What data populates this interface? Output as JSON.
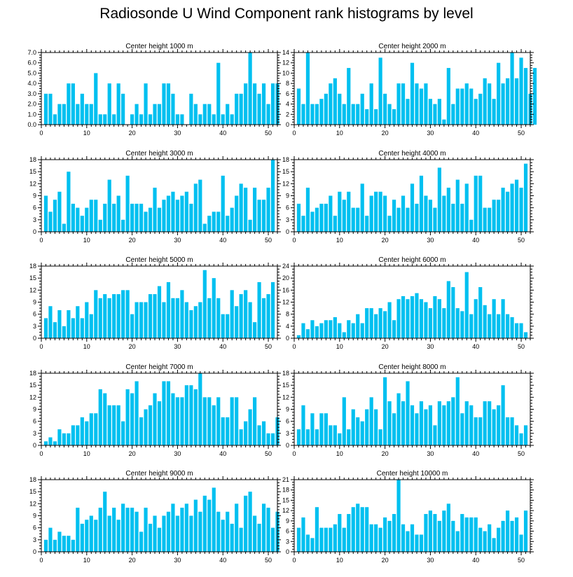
{
  "title": "Radiosonde U Wind Component rank histograms by level",
  "colors": {
    "bar": "#00c0f0",
    "axis": "#000000",
    "background": "#ffffff"
  },
  "chart_data": [
    {
      "type": "bar",
      "title": "Center height 1000 m",
      "xlim": [
        0,
        52
      ],
      "ylim": [
        0,
        7
      ],
      "xticks": [
        0,
        10,
        20,
        30,
        40,
        50
      ],
      "yticks": [
        0,
        1,
        2,
        3,
        4,
        5,
        6,
        7
      ],
      "ytick_labels": [
        "0.0",
        "1.0",
        "2.0",
        "3.0",
        "4.0",
        "5.0",
        "6.0",
        "7.0"
      ],
      "values": [
        3,
        3,
        1,
        2,
        2,
        4,
        4,
        2,
        3,
        2,
        2,
        5,
        1,
        1,
        4,
        1,
        4,
        3,
        0,
        1,
        2,
        1,
        4,
        1,
        2,
        2,
        4,
        4,
        3,
        1,
        1,
        0,
        3,
        2,
        1,
        2,
        2,
        1,
        6,
        1,
        2,
        1,
        3,
        3,
        4,
        7,
        4,
        3,
        4,
        2,
        4,
        4
      ]
    },
    {
      "type": "bar",
      "title": "Center height 2000 m",
      "xlim": [
        0,
        52
      ],
      "ylim": [
        0,
        14
      ],
      "xticks": [
        0,
        10,
        20,
        30,
        40,
        50
      ],
      "yticks": [
        0,
        2,
        4,
        6,
        8,
        10,
        12,
        14
      ],
      "ytick_labels": [
        "0",
        "2",
        "4",
        "6",
        "8",
        "10",
        "12",
        "14"
      ],
      "values": [
        7,
        4,
        14,
        4,
        4,
        5,
        6,
        8,
        9,
        6,
        4,
        11,
        4,
        4,
        6,
        3,
        8,
        3,
        13,
        6,
        4,
        3,
        8,
        8,
        5,
        12,
        8,
        7,
        8,
        5,
        4,
        5,
        1,
        11,
        4,
        7,
        7,
        8,
        7,
        5,
        6,
        9,
        8,
        5,
        12,
        8,
        9,
        14,
        9,
        13,
        11,
        6,
        11
      ]
    },
    {
      "type": "bar",
      "title": "Center height 3000 m",
      "xlim": [
        0,
        52
      ],
      "ylim": [
        0,
        18
      ],
      "xticks": [
        0,
        10,
        20,
        30,
        40,
        50
      ],
      "yticks": [
        0,
        3,
        6,
        9,
        12,
        15,
        18
      ],
      "ytick_labels": [
        "0",
        "3",
        "6",
        "9",
        "12",
        "15",
        "18"
      ],
      "values": [
        9,
        5,
        8,
        10,
        2,
        15,
        7,
        6,
        4,
        6,
        8,
        8,
        3,
        7,
        13,
        7,
        9,
        3,
        14,
        7,
        7,
        7,
        5,
        6,
        11,
        6,
        8,
        9,
        10,
        8,
        9,
        10,
        7,
        12,
        13,
        2,
        4,
        5,
        5,
        14,
        4,
        6,
        9,
        12,
        11,
        3,
        11,
        8,
        8,
        11,
        18
      ]
    },
    {
      "type": "bar",
      "title": "Center height 4000 m",
      "xlim": [
        0,
        52
      ],
      "ylim": [
        0,
        18
      ],
      "xticks": [
        0,
        10,
        20,
        30,
        40,
        50
      ],
      "yticks": [
        0,
        3,
        6,
        9,
        12,
        15,
        18
      ],
      "ytick_labels": [
        "0",
        "3",
        "6",
        "9",
        "12",
        "15",
        "18"
      ],
      "values": [
        7,
        4,
        11,
        5,
        6,
        7,
        7,
        9,
        4,
        10,
        8,
        10,
        6,
        6,
        12,
        4,
        9,
        10,
        10,
        9,
        4,
        8,
        6,
        9,
        6,
        12,
        7,
        14,
        9,
        8,
        6,
        16,
        9,
        11,
        7,
        13,
        7,
        12,
        3,
        14,
        14,
        6,
        6,
        8,
        8,
        11,
        10,
        12,
        13,
        11,
        17
      ]
    },
    {
      "type": "bar",
      "title": "Center height 5000 m",
      "xlim": [
        0,
        52
      ],
      "ylim": [
        0,
        18
      ],
      "xticks": [
        0,
        10,
        20,
        30,
        40,
        50
      ],
      "yticks": [
        0,
        3,
        6,
        9,
        12,
        15,
        18
      ],
      "ytick_labels": [
        "0",
        "3",
        "6",
        "9",
        "12",
        "15",
        "18"
      ],
      "values": [
        5,
        8,
        4,
        7,
        3,
        7,
        5,
        8,
        5,
        9,
        6,
        12,
        10,
        11,
        10,
        11,
        11,
        12,
        12,
        6,
        9,
        9,
        9,
        11,
        11,
        13,
        9,
        14,
        10,
        10,
        12,
        9,
        7,
        8,
        9,
        17,
        10,
        15,
        10,
        6,
        6,
        12,
        8,
        11,
        12,
        9,
        4,
        14,
        10,
        11,
        14
      ]
    },
    {
      "type": "bar",
      "title": "Center height 6000 m",
      "xlim": [
        0,
        52
      ],
      "ylim": [
        0,
        24
      ],
      "xticks": [
        0,
        10,
        20,
        30,
        40,
        50
      ],
      "yticks": [
        0,
        4,
        8,
        12,
        16,
        20,
        24
      ],
      "ytick_labels": [
        "0",
        "4",
        "8",
        "12",
        "16",
        "20",
        "24"
      ],
      "values": [
        1,
        5,
        3,
        6,
        4,
        5,
        6,
        6,
        7,
        5,
        2,
        6,
        5,
        8,
        5,
        10,
        10,
        8,
        10,
        9,
        12,
        6,
        13,
        14,
        13,
        14,
        15,
        13,
        12,
        10,
        14,
        13,
        10,
        19,
        17,
        10,
        9,
        22,
        8,
        13,
        17,
        11,
        8,
        13,
        8,
        13,
        8,
        7,
        5,
        5,
        2
      ]
    },
    {
      "type": "bar",
      "title": "Center height 7000 m",
      "xlim": [
        0,
        52
      ],
      "ylim": [
        0,
        18
      ],
      "xticks": [
        0,
        10,
        20,
        30,
        40,
        50
      ],
      "yticks": [
        0,
        3,
        6,
        9,
        12,
        15,
        18
      ],
      "ytick_labels": [
        "0",
        "3",
        "6",
        "9",
        "12",
        "15",
        "18"
      ],
      "values": [
        1,
        2,
        1,
        4,
        3,
        3,
        5,
        5,
        7,
        6,
        8,
        8,
        14,
        13,
        10,
        10,
        10,
        6,
        14,
        13,
        16,
        7,
        9,
        10,
        13,
        11,
        16,
        16,
        13,
        12,
        12,
        15,
        15,
        14,
        18,
        12,
        12,
        10,
        12,
        7,
        7,
        12,
        12,
        4,
        6,
        9,
        12,
        5,
        6,
        3,
        3,
        7
      ]
    },
    {
      "type": "bar",
      "title": "Center height 8000 m",
      "xlim": [
        0,
        52
      ],
      "ylim": [
        0,
        18
      ],
      "xticks": [
        0,
        10,
        20,
        30,
        40,
        50
      ],
      "yticks": [
        0,
        3,
        6,
        9,
        12,
        15,
        18
      ],
      "ytick_labels": [
        "0",
        "3",
        "6",
        "9",
        "12",
        "15",
        "18"
      ],
      "values": [
        4,
        10,
        4,
        8,
        4,
        8,
        8,
        5,
        5,
        3,
        12,
        4,
        9,
        7,
        6,
        9,
        12,
        9,
        4,
        17,
        11,
        8,
        13,
        11,
        16,
        10,
        8,
        11,
        9,
        10,
        5,
        11,
        10,
        11,
        12,
        17,
        8,
        11,
        10,
        7,
        7,
        11,
        11,
        9,
        10,
        15,
        7,
        7,
        5,
        3,
        5
      ]
    },
    {
      "type": "bar",
      "title": "Center height 9000 m",
      "xlim": [
        0,
        52
      ],
      "ylim": [
        0,
        18
      ],
      "xticks": [
        0,
        10,
        20,
        30,
        40,
        50
      ],
      "yticks": [
        0,
        3,
        6,
        9,
        12,
        15,
        18
      ],
      "ytick_labels": [
        "0",
        "3",
        "6",
        "9",
        "12",
        "15",
        "18"
      ],
      "values": [
        3,
        6,
        3,
        5,
        4,
        4,
        3,
        11,
        7,
        8,
        9,
        8,
        11,
        15,
        9,
        11,
        8,
        12,
        11,
        11,
        10,
        5,
        11,
        7,
        9,
        6,
        9,
        10,
        12,
        9,
        11,
        12,
        9,
        13,
        10,
        14,
        13,
        16,
        10,
        8,
        10,
        7,
        12,
        6,
        14,
        15,
        9,
        7,
        12,
        11,
        6,
        10
      ]
    },
    {
      "type": "bar",
      "title": "Center height 10000 m",
      "xlim": [
        0,
        52
      ],
      "ylim": [
        0,
        21
      ],
      "xticks": [
        0,
        10,
        20,
        30,
        40,
        50
      ],
      "yticks": [
        0,
        3,
        6,
        9,
        12,
        15,
        18,
        21
      ],
      "ytick_labels": [
        "0",
        "3",
        "6",
        "9",
        "12",
        "15",
        "18",
        "21"
      ],
      "values": [
        7,
        10,
        5,
        4,
        13,
        7,
        7,
        7,
        8,
        11,
        7,
        11,
        13,
        14,
        13,
        13,
        8,
        8,
        7,
        10,
        9,
        11,
        21,
        8,
        6,
        8,
        5,
        5,
        11,
        12,
        11,
        9,
        12,
        14,
        9,
        6,
        11,
        10,
        10,
        10,
        7,
        6,
        8,
        4,
        7,
        9,
        12,
        9,
        10,
        5,
        12
      ]
    }
  ]
}
